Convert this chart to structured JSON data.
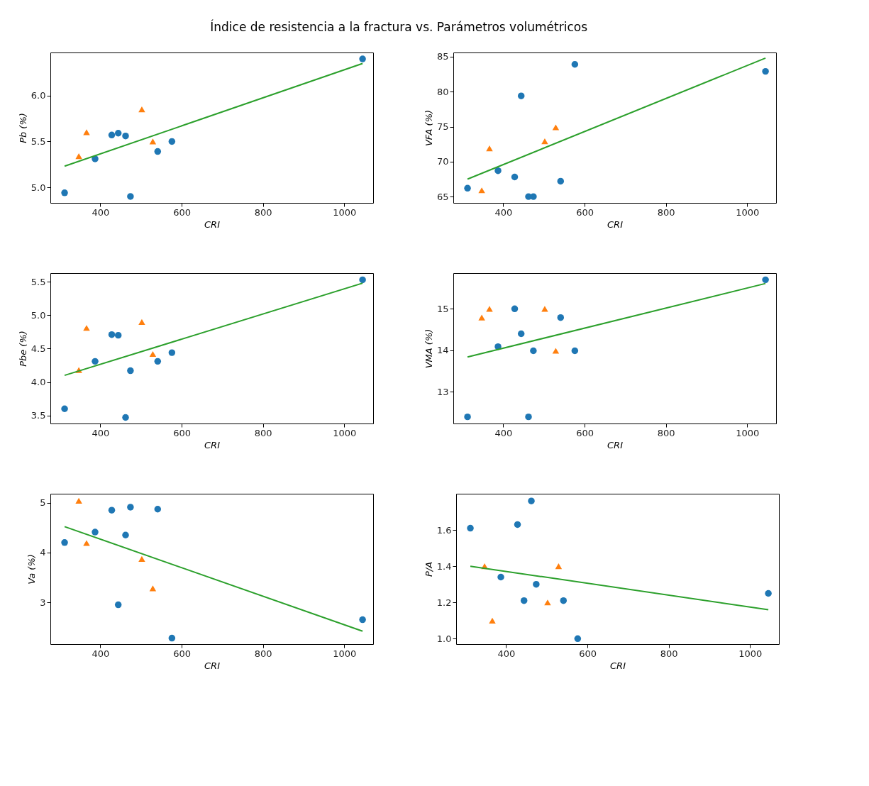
{
  "chart_data": [
    {
      "type": "scatter",
      "title": "Índice de resistencia a la fractura vs. Parámetros volumétricos",
      "xlabel": "CRI",
      "ylabel": "Pb (%)",
      "xlim": [
        277,
        1071
      ],
      "xticks": [
        400,
        600,
        800,
        1000
      ],
      "ylim": [
        4.83,
        6.47
      ],
      "yticks": [
        {
          "value": 5.0,
          "label": "5.0"
        },
        {
          "value": 5.5,
          "label": "5.5"
        },
        {
          "value": 6.0,
          "label": "6.0"
        }
      ],
      "series": [
        {
          "color": "#1f77b4",
          "marker": "circle",
          "x": [
            312,
            387,
            428,
            444,
            462,
            474,
            541,
            576,
            1045
          ],
          "values": [
            4.94,
            5.31,
            5.57,
            5.59,
            5.56,
            4.9,
            5.39,
            5.5,
            6.4
          ]
        },
        {
          "color": "#ff7f0e",
          "marker": "triangle",
          "x": [
            347,
            366,
            502,
            529
          ],
          "values": [
            5.34,
            5.6,
            5.85,
            5.5
          ]
        },
        {
          "type": "line",
          "color": "#2ca02c",
          "x": [
            312,
            1045
          ],
          "values": [
            5.23,
            6.35
          ]
        }
      ]
    },
    {
      "type": "scatter",
      "xlabel": "CRI",
      "ylabel": "VFA (%)",
      "xlim": [
        277,
        1071
      ],
      "xticks": [
        400,
        600,
        800,
        1000
      ],
      "ylim": [
        64.1,
        85.6
      ],
      "yticks": [
        65,
        70,
        75,
        80,
        85
      ],
      "series": [
        {
          "color": "#1f77b4",
          "marker": "circle",
          "x": [
            312,
            387,
            428,
            444,
            462,
            474,
            541,
            576,
            1045
          ],
          "values": [
            66.2,
            68.7,
            67.8,
            79.4,
            65.0,
            65.0,
            67.2,
            83.9,
            82.9
          ]
        },
        {
          "color": "#ff7f0e",
          "marker": "triangle",
          "x": [
            347,
            366,
            502,
            529
          ],
          "values": [
            65.9,
            71.9,
            72.9,
            74.9
          ]
        },
        {
          "type": "line",
          "color": "#2ca02c",
          "x": [
            312,
            1045
          ],
          "values": [
            67.5,
            84.8
          ]
        }
      ]
    },
    {
      "type": "scatter",
      "xlabel": "CRI",
      "ylabel": "Pbe (%)",
      "xlim": [
        277,
        1071
      ],
      "xticks": [
        400,
        600,
        800,
        1000
      ],
      "ylim": [
        3.38,
        5.63
      ],
      "yticks": [
        {
          "value": 3.5,
          "label": "3.5"
        },
        {
          "value": 4.0,
          "label": "4.0"
        },
        {
          "value": 4.5,
          "label": "4.5"
        },
        {
          "value": 5.0,
          "label": "5.0"
        },
        {
          "value": 5.5,
          "label": "5.5"
        }
      ],
      "series": [
        {
          "color": "#1f77b4",
          "marker": "circle",
          "x": [
            312,
            387,
            428,
            444,
            462,
            474,
            541,
            576,
            1045
          ],
          "values": [
            3.6,
            4.31,
            4.71,
            4.7,
            3.47,
            4.17,
            4.31,
            4.44,
            5.53
          ]
        },
        {
          "color": "#ff7f0e",
          "marker": "triangle",
          "x": [
            347,
            366,
            502,
            529
          ],
          "values": [
            4.18,
            4.81,
            4.9,
            4.42
          ]
        },
        {
          "type": "line",
          "color": "#2ca02c",
          "x": [
            312,
            1045
          ],
          "values": [
            4.1,
            5.48
          ]
        }
      ]
    },
    {
      "type": "scatter",
      "xlabel": "CRI",
      "ylabel": "VMA (%)",
      "xlim": [
        277,
        1071
      ],
      "xticks": [
        400,
        600,
        800,
        1000
      ],
      "ylim": [
        12.24,
        15.86
      ],
      "yticks": [
        13,
        14,
        15
      ],
      "series": [
        {
          "color": "#1f77b4",
          "marker": "circle",
          "x": [
            312,
            387,
            428,
            444,
            462,
            474,
            541,
            576,
            1045
          ],
          "values": [
            12.4,
            14.09,
            15.0,
            14.4,
            12.4,
            13.99,
            14.79,
            13.99,
            15.7
          ]
        },
        {
          "color": "#ff7f0e",
          "marker": "triangle",
          "x": [
            347,
            366,
            502,
            529
          ],
          "values": [
            14.79,
            15.0,
            15.0,
            13.99
          ]
        },
        {
          "type": "line",
          "color": "#2ca02c",
          "x": [
            312,
            1045
          ],
          "values": [
            13.84,
            15.61
          ]
        }
      ]
    },
    {
      "type": "scatter",
      "xlabel": "CRI",
      "ylabel": "Va (%)",
      "xlim": [
        277,
        1071
      ],
      "xticks": [
        400,
        600,
        800,
        1000
      ],
      "ylim": [
        2.16,
        5.18
      ],
      "yticks": [
        3,
        4,
        5
      ],
      "series": [
        {
          "color": "#1f77b4",
          "marker": "circle",
          "x": [
            312,
            387,
            428,
            444,
            462,
            474,
            541,
            576,
            1045
          ],
          "values": [
            4.2,
            4.41,
            4.85,
            2.95,
            4.35,
            4.91,
            4.87,
            2.28,
            2.65
          ]
        },
        {
          "color": "#ff7f0e",
          "marker": "triangle",
          "x": [
            347,
            366,
            502,
            529
          ],
          "values": [
            5.04,
            4.19,
            3.87,
            3.28
          ]
        },
        {
          "type": "line",
          "color": "#2ca02c",
          "x": [
            312,
            1045
          ],
          "values": [
            4.52,
            2.42
          ]
        }
      ]
    },
    {
      "type": "scatter",
      "xlabel": "CRI",
      "ylabel": "P/A",
      "xlim": [
        277,
        1071
      ],
      "xticks": [
        400,
        600,
        800,
        1000
      ],
      "ylim": [
        0.97,
        1.8
      ],
      "yticks": [
        {
          "value": 1.0,
          "label": "1.0"
        },
        {
          "value": 1.2,
          "label": "1.2"
        },
        {
          "value": 1.4,
          "label": "1.4"
        },
        {
          "value": 1.6,
          "label": "1.6"
        }
      ],
      "series": [
        {
          "color": "#1f77b4",
          "marker": "circle",
          "x": [
            312,
            387,
            428,
            444,
            462,
            474,
            541,
            576,
            1045
          ],
          "values": [
            1.61,
            1.34,
            1.63,
            1.21,
            1.76,
            1.3,
            1.21,
            1.0,
            1.25
          ]
        },
        {
          "color": "#ff7f0e",
          "marker": "triangle",
          "x": [
            347,
            366,
            502,
            529
          ],
          "values": [
            1.4,
            1.1,
            1.2,
            1.4
          ]
        },
        {
          "type": "line",
          "color": "#2ca02c",
          "x": [
            312,
            1045
          ],
          "values": [
            1.4,
            1.16
          ]
        }
      ]
    }
  ]
}
